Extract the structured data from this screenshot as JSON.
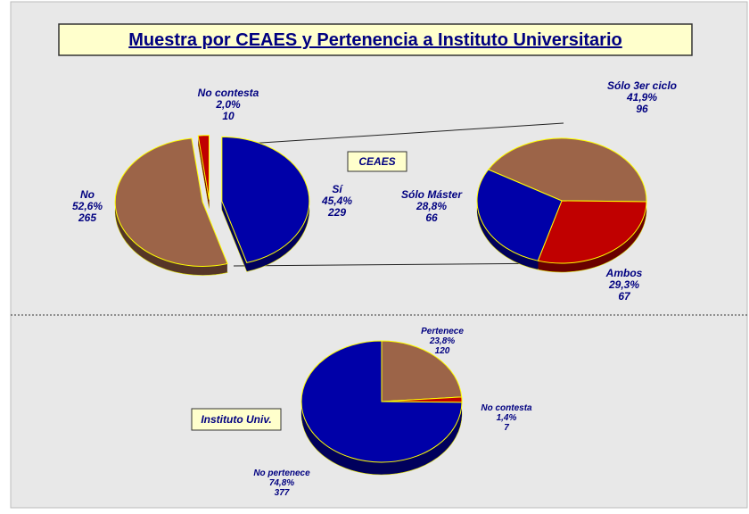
{
  "title": "Muestra por  CEAES y Pertenencia a  Instituto Universitario",
  "chart_data": [
    {
      "type": "pie",
      "categories": [
        "No contesta",
        "Sí",
        "No"
      ],
      "values": [
        2.0,
        45.4,
        52.6
      ],
      "value_labels": [
        "2,0%",
        "45,4%",
        "52,6%"
      ],
      "counts": [
        10,
        229,
        265
      ],
      "colors": [
        "#c00000",
        "#0000a8",
        "#9c6448"
      ]
    },
    {
      "type": "pie",
      "label": "CEAES",
      "categories": [
        "Sólo 3er ciclo",
        "Ambos",
        "Sólo Máster"
      ],
      "values": [
        41.9,
        29.3,
        28.8
      ],
      "value_labels": [
        "41,9%",
        "29,3%",
        "28,8%"
      ],
      "counts": [
        96,
        67,
        66
      ],
      "colors": [
        "#9c6448",
        "#c00000",
        "#0000a8"
      ]
    },
    {
      "type": "pie",
      "label": "Instituto Univ.",
      "categories": [
        "Pertenece",
        "No contesta",
        "No pertenece"
      ],
      "values": [
        23.8,
        1.4,
        74.8
      ],
      "value_labels": [
        "23,8%",
        "1,4%",
        "74,8%"
      ],
      "counts": [
        120,
        7,
        377
      ],
      "colors": [
        "#9c6448",
        "#c00000",
        "#0000a8"
      ]
    }
  ]
}
